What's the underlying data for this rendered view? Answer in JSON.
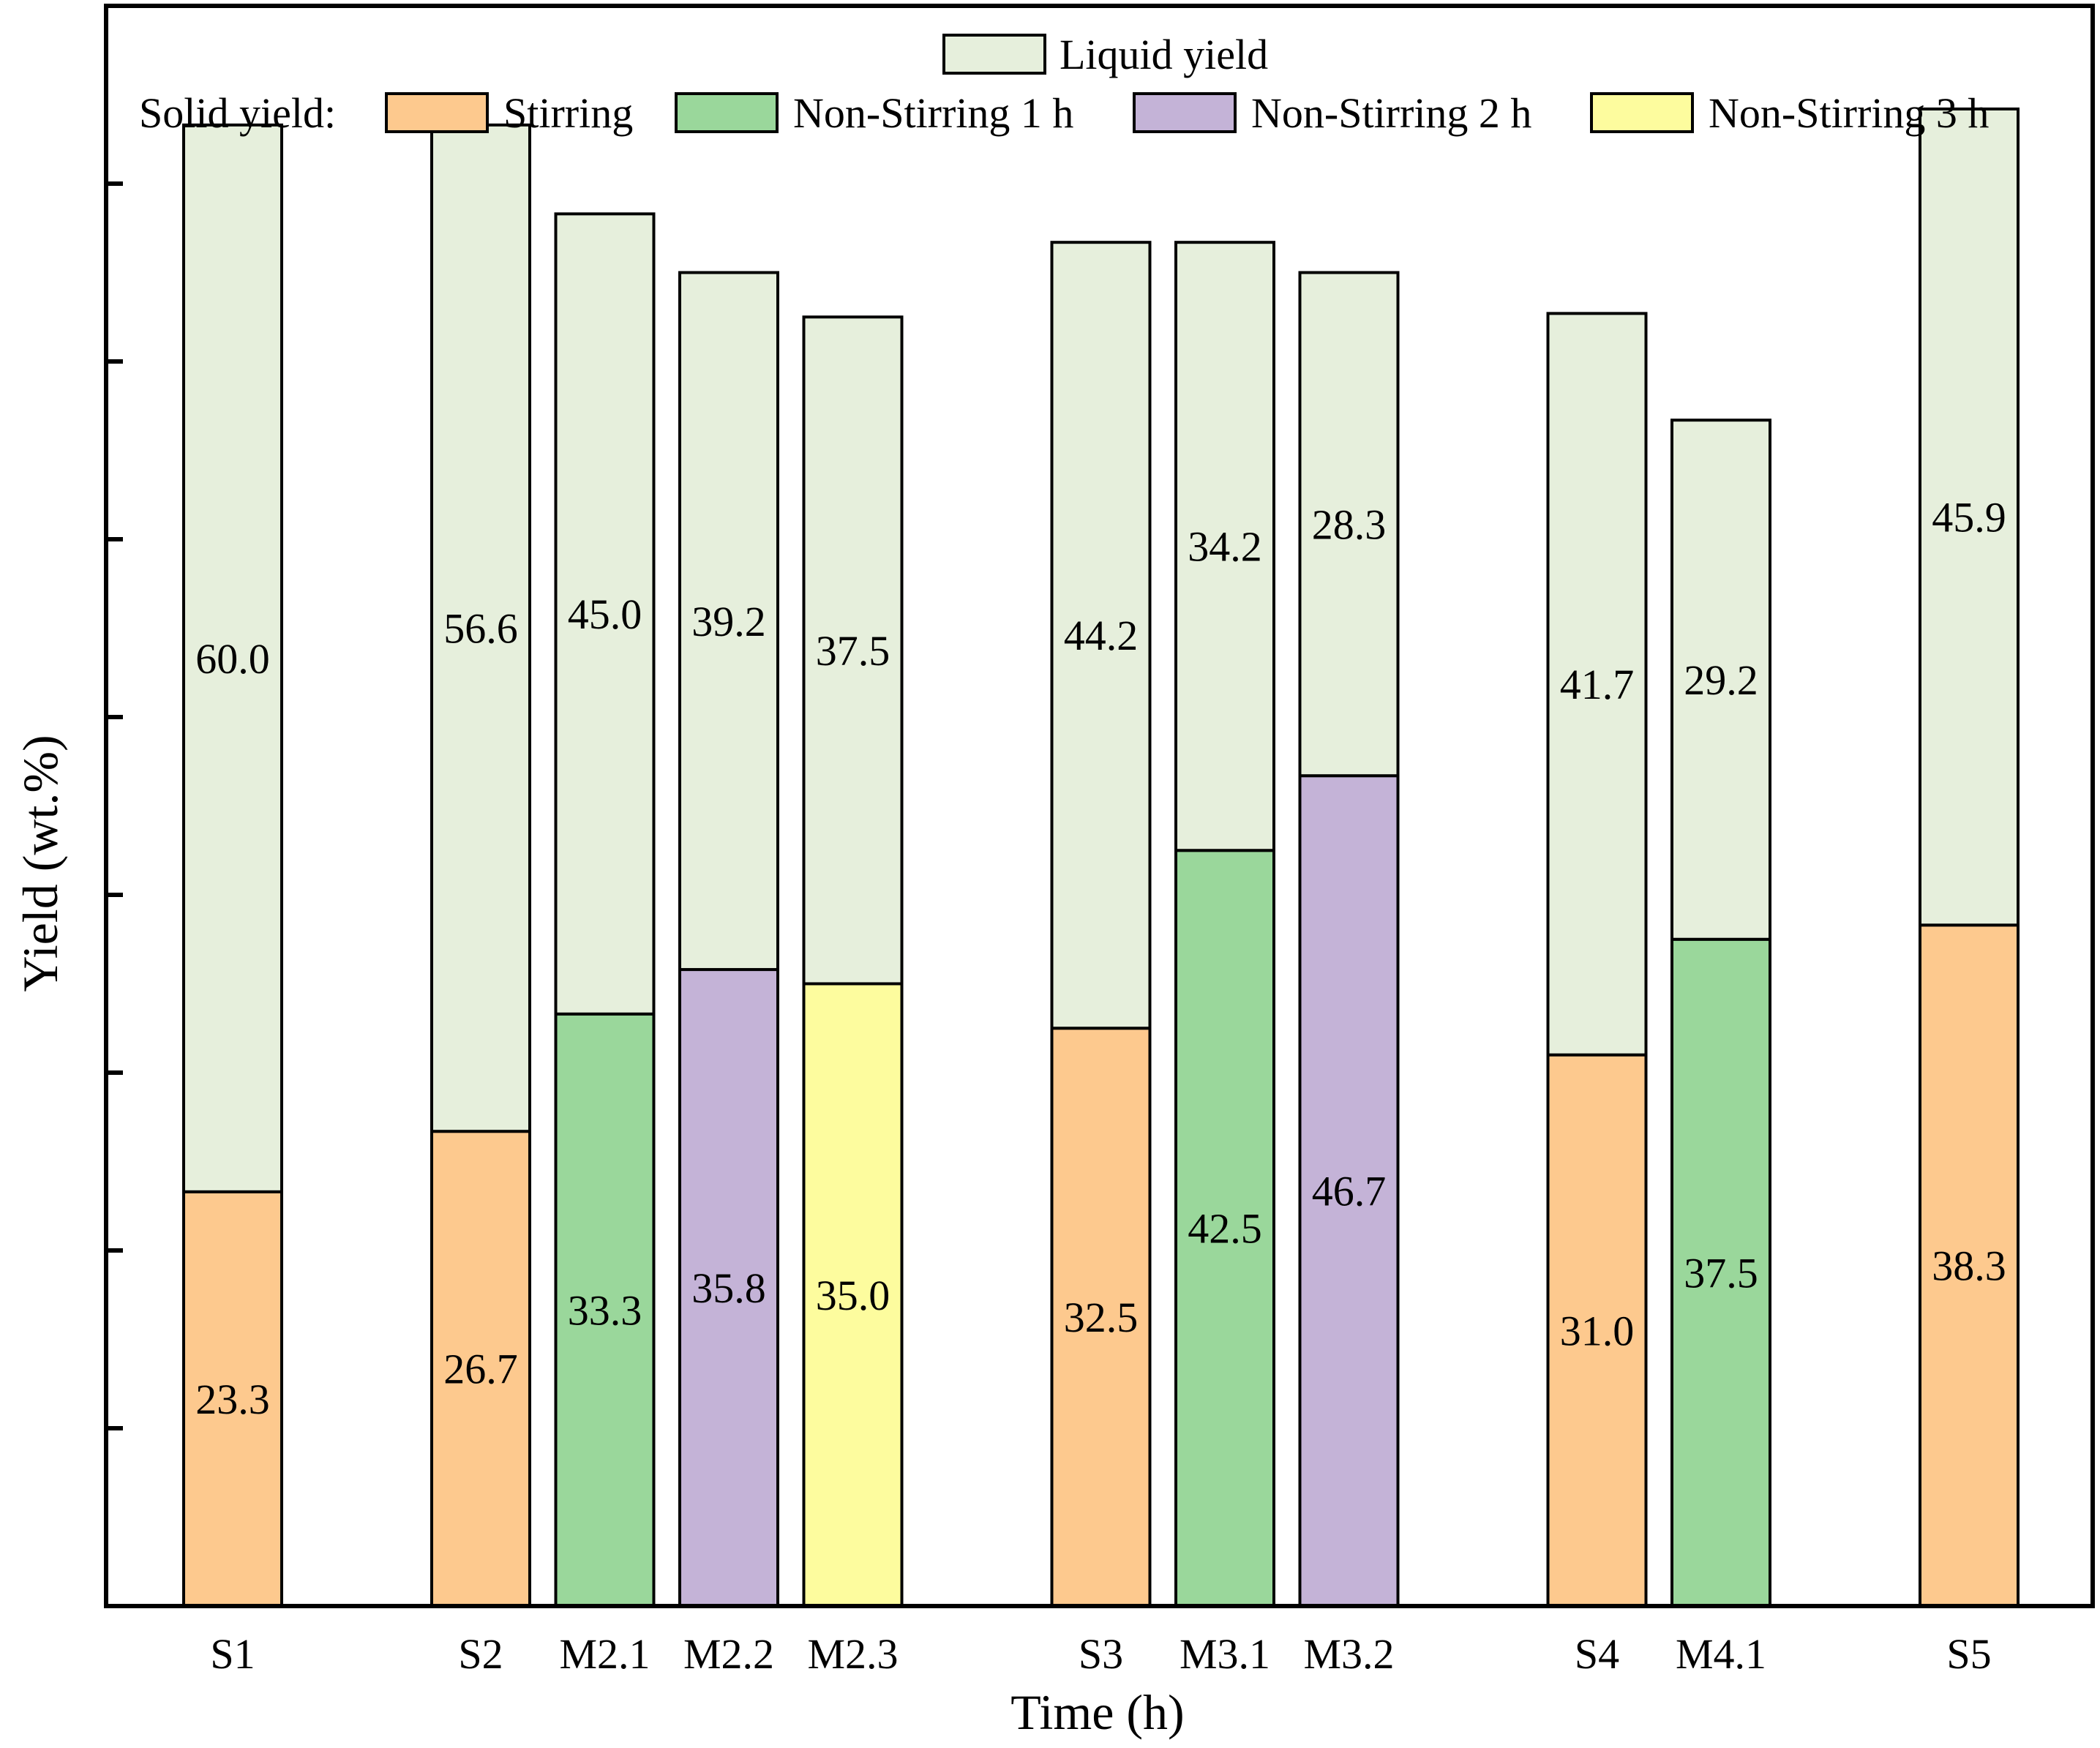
{
  "chart_data": {
    "type": "bar",
    "stacked": true,
    "xlabel": "Time (h)",
    "ylabel": "Yield (wt.%)",
    "ylim": [
      0,
      90
    ],
    "ytick_values": [
      10,
      20,
      30,
      40,
      50,
      60,
      70,
      80,
      90
    ],
    "y_tick_labels_shown": false,
    "grid": false,
    "legend": {
      "placement": "top",
      "liquid_label": "Liquid yield",
      "solid_prefix": "Solid yield:",
      "entries": [
        {
          "key": "stirring",
          "label": "Stirring"
        },
        {
          "key": "ns1",
          "label": "Non-Stirring 1 h"
        },
        {
          "key": "ns2",
          "label": "Non-Stirring 2 h"
        },
        {
          "key": "ns3",
          "label": "Non-Stirring 3 h"
        }
      ]
    },
    "colors": {
      "liquid": "#e6efdc",
      "stirring": "#fdc98e",
      "ns1": "#9ad79b",
      "ns2": "#c4b3d7",
      "ns3": "#fdfc9e"
    },
    "bars": [
      {
        "label": "S1",
        "slot": 0,
        "solid_type": "stirring",
        "solid": 23.3,
        "liquid": 60.0
      },
      {
        "label": "S2",
        "slot": 2,
        "solid_type": "stirring",
        "solid": 26.7,
        "liquid": 56.6
      },
      {
        "label": "M2.1",
        "slot": 3,
        "solid_type": "ns1",
        "solid": 33.3,
        "liquid": 45.0
      },
      {
        "label": "M2.2",
        "slot": 4,
        "solid_type": "ns2",
        "solid": 35.8,
        "liquid": 39.2
      },
      {
        "label": "M2.3",
        "slot": 5,
        "solid_type": "ns3",
        "solid": 35.0,
        "liquid": 37.5
      },
      {
        "label": "S3",
        "slot": 7,
        "solid_type": "stirring",
        "solid": 32.5,
        "liquid": 44.2
      },
      {
        "label": "M3.1",
        "slot": 8,
        "solid_type": "ns1",
        "solid": 42.5,
        "liquid": 34.2
      },
      {
        "label": "M3.2",
        "slot": 9,
        "solid_type": "ns2",
        "solid": 46.7,
        "liquid": 28.3
      },
      {
        "label": "S4",
        "slot": 11,
        "solid_type": "stirring",
        "solid": 31.0,
        "liquid": 41.7
      },
      {
        "label": "M4.1",
        "slot": 12,
        "solid_type": "ns1",
        "solid": 37.5,
        "liquid": 29.2
      },
      {
        "label": "S5",
        "slot": 14,
        "solid_type": "stirring",
        "solid": 38.3,
        "liquid": 45.9
      }
    ]
  }
}
